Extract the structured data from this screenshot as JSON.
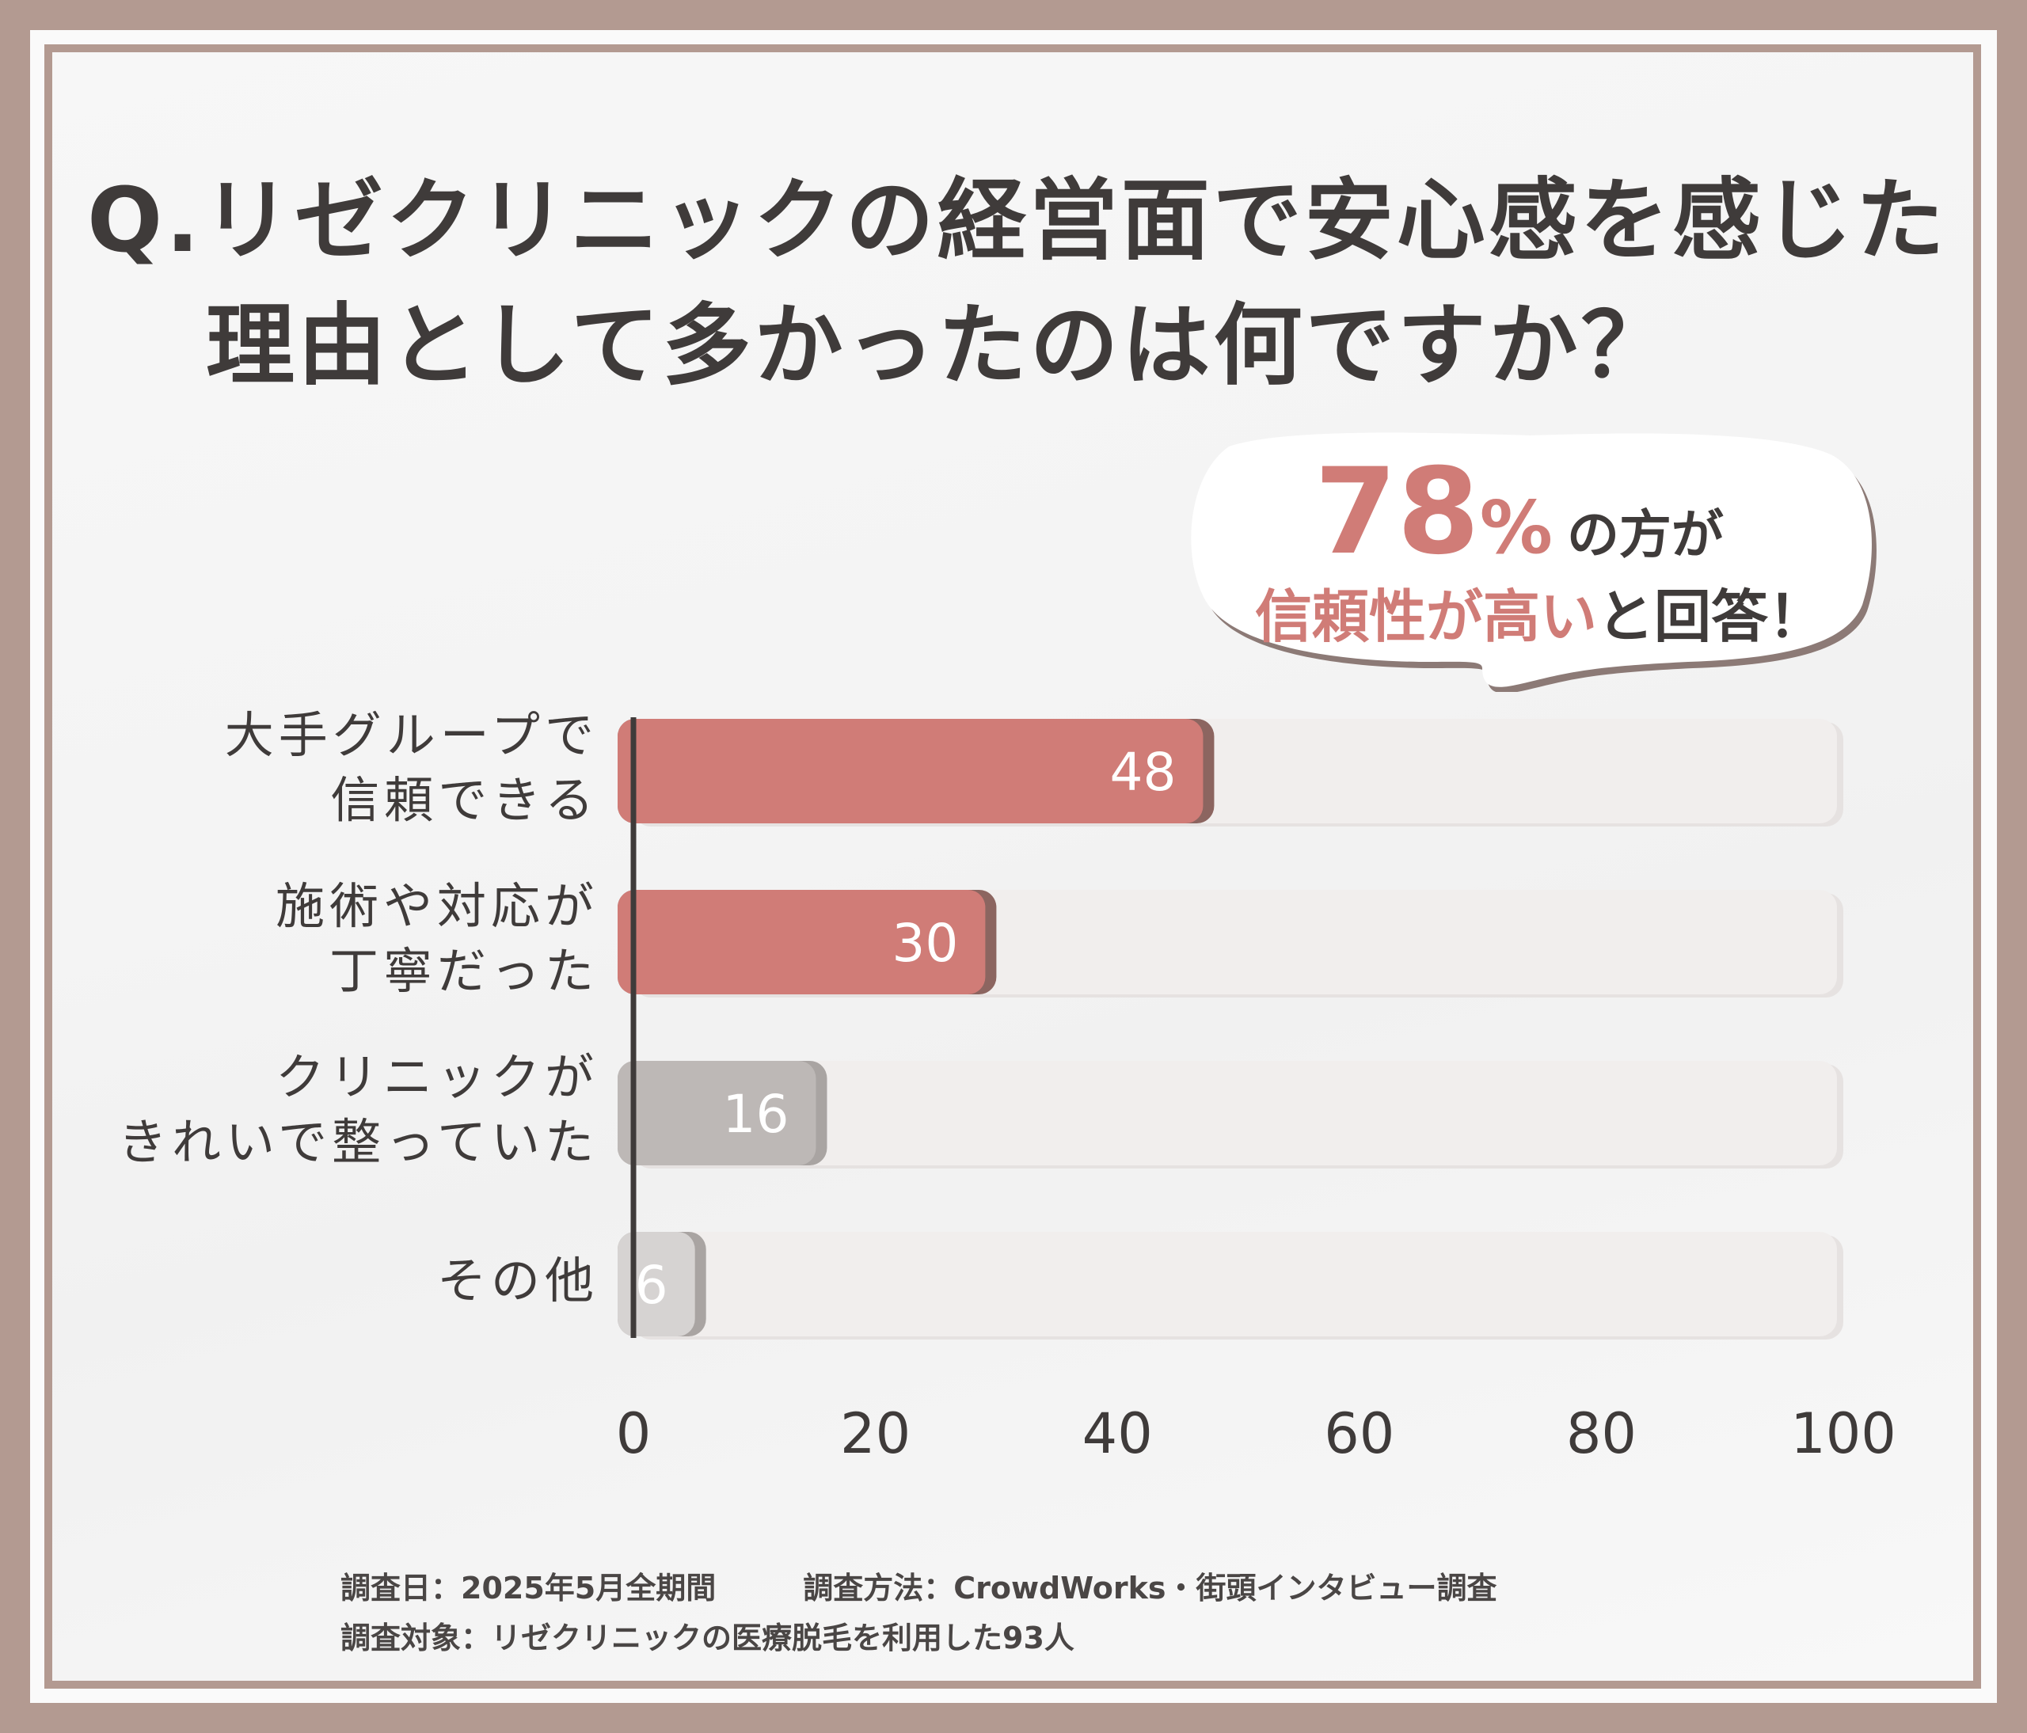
{
  "title": {
    "line1": "Q.リゼクリニックの経営面で安心感を感じた",
    "line2": "理由として多かったのは何ですか？"
  },
  "callout": {
    "number": "78",
    "percent": "%",
    "suffix": "の方が",
    "accent": "信頼性が高い",
    "rest": "と回答！"
  },
  "chart_data": {
    "type": "bar",
    "orientation": "horizontal",
    "categories": [
      "大手グループで\n信頼できる",
      "施術や対応が\n丁寧だった",
      "クリニックが\nきれいで整っていた",
      "その他"
    ],
    "values": [
      48,
      30,
      16,
      6
    ],
    "xlim": [
      0,
      100
    ],
    "xticks": [
      "0",
      "20",
      "40",
      "60",
      "80",
      "100"
    ],
    "bar_colors": [
      "#d07c77",
      "#d07c77",
      "#bdb8b6",
      "#d6d3d2"
    ],
    "track_color": "#f1eeed",
    "grid": false,
    "legend": "none",
    "title": "",
    "xlabel": "",
    "ylabel": ""
  },
  "footnotes": {
    "date": "調査日：2025年5月全期間",
    "method": "調査方法：CrowdWorks・街頭インタビュー調査",
    "target": "調査対象：リゼクリニックの医療脱毛を利用した93人"
  }
}
